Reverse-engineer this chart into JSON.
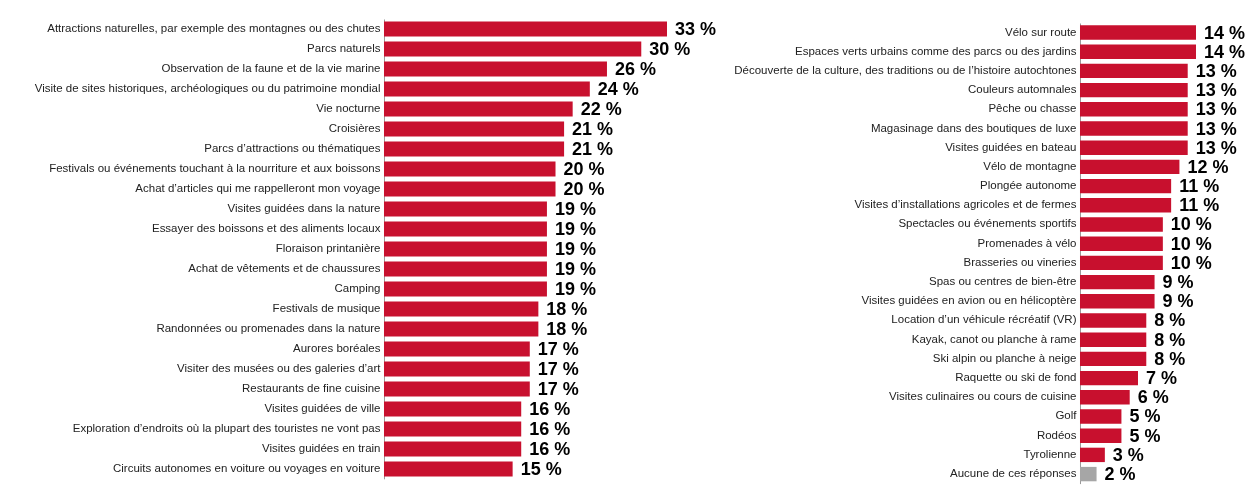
{
  "chart_data": [
    {
      "type": "bar",
      "orientation": "horizontal",
      "color": "#c8102e",
      "tick_labels": "y",
      "categories": [
        "Attractions naturelles, par exemple des montagnes ou des chutes",
        "Parcs naturels",
        "Observation de la faune et de la vie marine",
        "Visite de sites historiques, archéologiques ou du patrimoine mondial",
        "Vie nocturne",
        "Croisières",
        "Parcs d’attractions ou thématiques",
        "Festivals ou événements touchant à la nourriture et aux boissons",
        "Achat d’articles qui me rappelleront mon voyage",
        "Visites guidées dans la nature",
        "Essayer des boissons et des aliments locaux",
        "Floraison printanière",
        "Achat de vêtements et de chaussures",
        "Camping",
        "Festivals de musique",
        "Randonnées ou promenades dans la nature",
        "Aurores boréales",
        "Visiter des musées ou des galeries d’art",
        "Restaurants de fine cuisine",
        "Visites guidées de ville",
        "Exploration d’endroits où la plupart des touristes ne vont pas",
        "Visites guidées en train",
        "Circuits autonomes en voiture ou voyages en voiture"
      ],
      "values": [
        33,
        30,
        26,
        24,
        22,
        21,
        21,
        20,
        20,
        19,
        19,
        19,
        19,
        19,
        18,
        18,
        17,
        17,
        17,
        16,
        16,
        16,
        15
      ],
      "value_labels": [
        "33 %",
        "30 %",
        "26 %",
        "24 %",
        "22 %",
        "21 %",
        "21 %",
        "20 %",
        "20 %",
        "19 %",
        "19 %",
        "19 %",
        "19 %",
        "19 %",
        "18 %",
        "18 %",
        "17 %",
        "17 %",
        "17 %",
        "16 %",
        "16 %",
        "16 %",
        "15 %"
      ]
    },
    {
      "type": "bar",
      "orientation": "horizontal",
      "tick_labels": "y",
      "categories": [
        "Vélo sur route",
        "Espaces verts urbains comme des parcs ou des jardins",
        "Découverte de la culture, des traditions ou de l’histoire autochtones",
        "Couleurs automnales",
        "Pêche ou chasse",
        "Magasinage dans des boutiques de luxe",
        "Visites guidées en bateau",
        "Vélo de montagne",
        "Plongée autonome",
        "Visites d’installations agricoles et de fermes",
        "Spectacles ou événements sportifs",
        "Promenades à vélo",
        "Brasseries ou vineries",
        "Spas ou centres de bien-être",
        "Visites guidées en avion ou en hélicoptère",
        "Location d’un véhicule récréatif (VR)",
        "Kayak, canot ou planche à rame",
        "Ski alpin ou planche à neige",
        "Raquette ou ski de fond",
        "Visites culinaires ou cours de cuisine",
        "Golf",
        "Rodéos",
        "Tyrolienne",
        "Aucune de ces réponses"
      ],
      "values": [
        14,
        14,
        13,
        13,
        13,
        13,
        13,
        12,
        11,
        11,
        10,
        10,
        10,
        9,
        9,
        8,
        8,
        8,
        7,
        6,
        5,
        5,
        3,
        2
      ],
      "value_labels": [
        "14 %",
        "14 %",
        "13 %",
        "13 %",
        "13 %",
        "13 %",
        "13 %",
        "12 %",
        "11 %",
        "11 %",
        "10 %",
        "10 %",
        "10 %",
        "9 %",
        "9 %",
        "8 %",
        "8 %",
        "8 %",
        "7 %",
        "6 %",
        "5 %",
        "5 %",
        "3 %",
        "2 %"
      ],
      "colors": [
        "#c8102e",
        "#c8102e",
        "#c8102e",
        "#c8102e",
        "#c8102e",
        "#c8102e",
        "#c8102e",
        "#c8102e",
        "#c8102e",
        "#c8102e",
        "#c8102e",
        "#c8102e",
        "#c8102e",
        "#c8102e",
        "#c8102e",
        "#c8102e",
        "#c8102e",
        "#c8102e",
        "#c8102e",
        "#c8102e",
        "#c8102e",
        "#c8102e",
        "#c8102e",
        "#a6a6a6"
      ]
    }
  ]
}
